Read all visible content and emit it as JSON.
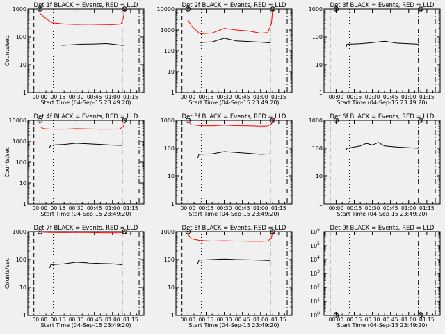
{
  "figure": {
    "background": "#f0f0f0",
    "ink_color": "#000000",
    "lld_color": "#ff0000"
  },
  "chart_data": [
    {
      "type": "line",
      "title": "Det 1f BLACK = Events, RED = LLD",
      "xlabel": "Start Time (04-Sep-15 23:49:20)",
      "ylabel": "Counts/sec",
      "yscale": "log",
      "ylim": [
        1,
        1000
      ],
      "ytick_labels": [
        "1",
        "10",
        "100",
        "1000"
      ],
      "xtick_labels": [
        "00:00",
        "00:15",
        "00:30",
        "00:45",
        "01:00",
        "01:15"
      ],
      "xlim_min": [
        -10,
        86
      ],
      "series": [
        {
          "color": "#000000",
          "points": [
            [
              18,
              50
            ],
            [
              25,
              52
            ],
            [
              35,
              55
            ],
            [
              45,
              56
            ],
            [
              55,
              58
            ],
            [
              60,
              55
            ],
            [
              68,
              50
            ],
            [
              70,
              50
            ]
          ]
        },
        {
          "color": "#ff0000",
          "points": [
            [
              0,
              700
            ],
            [
              5,
              450
            ],
            [
              10,
              320
            ],
            [
              20,
              290
            ],
            [
              30,
              280
            ],
            [
              40,
              285
            ],
            [
              50,
              280
            ],
            [
              60,
              275
            ],
            [
              67,
              290
            ],
            [
              69,
              480
            ],
            [
              70,
              1000
            ]
          ]
        }
      ],
      "vlines": [
        {
          "x": -5,
          "style": "dashed"
        },
        {
          "x": 11,
          "style": "dotted"
        },
        {
          "x": 68,
          "style": "dashdot"
        },
        {
          "x": 82,
          "style": "dashdot"
        }
      ],
      "markers": [
        {
          "x": 0,
          "y": 1000,
          "label": "f"
        },
        {
          "x": 70,
          "y": 1000,
          "label": "S"
        }
      ]
    },
    {
      "type": "line",
      "title": "Det 2f BLACK = Events, RED = LLD",
      "xlabel": "Start Time (04-Sep-15 23:49:20)",
      "ylabel": "",
      "yscale": "log",
      "ylim": [
        1,
        10000
      ],
      "ytick_labels": [
        "1",
        "10",
        "100",
        "1000",
        "10000"
      ],
      "xtick_labels": [
        "00:00",
        "00:15",
        "00:30",
        "00:45",
        "01:00",
        "01:15"
      ],
      "xlim_min": [
        -10,
        86
      ],
      "series": [
        {
          "color": "#000000",
          "points": [
            [
              10,
              250
            ],
            [
              20,
              270
            ],
            [
              30,
              400
            ],
            [
              40,
              300
            ],
            [
              50,
              280
            ],
            [
              60,
              260
            ],
            [
              68,
              240
            ]
          ]
        },
        {
          "color": "#ff0000",
          "points": [
            [
              0,
              3000
            ],
            [
              3,
              1500
            ],
            [
              10,
              650
            ],
            [
              20,
              720
            ],
            [
              30,
              1200
            ],
            [
              40,
              1000
            ],
            [
              50,
              900
            ],
            [
              60,
              700
            ],
            [
              66,
              750
            ],
            [
              69,
              2000
            ],
            [
              70,
              10000
            ]
          ]
        }
      ],
      "vlines": [
        {
          "x": -5,
          "style": "dashed"
        },
        {
          "x": 11,
          "style": "dotted"
        },
        {
          "x": 68,
          "style": "dashdot"
        },
        {
          "x": 82,
          "style": "dashdot"
        }
      ],
      "markers": [
        {
          "x": 0,
          "y": 10000,
          "label": "f"
        },
        {
          "x": 70,
          "y": 10000,
          "label": "S"
        }
      ]
    },
    {
      "type": "line",
      "title": "Det 3f BLACK = Events, RED = LLD",
      "xlabel": "Start Time (04-Sep-15 23:49:20)",
      "ylabel": "",
      "yscale": "log",
      "ylim": [
        1,
        1000
      ],
      "ytick_labels": [
        "1",
        "10",
        "100",
        "1000"
      ],
      "xtick_labels": [
        "00:00",
        "00:15",
        "00:30",
        "00:45",
        "01:00",
        "01:15"
      ],
      "xlim_min": [
        -10,
        86
      ],
      "series": [
        {
          "color": "#000000",
          "points": [
            [
              8,
              40
            ],
            [
              9,
              55
            ],
            [
              20,
              57
            ],
            [
              30,
              62
            ],
            [
              40,
              70
            ],
            [
              50,
              60
            ],
            [
              60,
              57
            ],
            [
              68,
              55
            ]
          ]
        }
      ],
      "vlines": [
        {
          "x": -5,
          "style": "dashed"
        },
        {
          "x": 11,
          "style": "dotted"
        },
        {
          "x": 68,
          "style": "dashdot"
        },
        {
          "x": 82,
          "style": "dashdot"
        }
      ],
      "markers": [
        {
          "x": 0,
          "y": 1000,
          "label": "f"
        },
        {
          "x": 70,
          "y": 1000,
          "label": "S"
        }
      ]
    },
    {
      "type": "line",
      "title": "Det 4f BLACK = Events, RED = LLD",
      "xlabel": "Start Time (04-Sep-15 23:49:20)",
      "ylabel": "Counts/sec",
      "yscale": "log",
      "ylim": [
        1,
        10000
      ],
      "ytick_labels": [
        "1",
        "10",
        "100",
        "1000",
        "10000"
      ],
      "xtick_labels": [
        "00:00",
        "00:15",
        "00:30",
        "00:45",
        "01:00",
        "01:15"
      ],
      "xlim_min": [
        -10,
        86
      ],
      "series": [
        {
          "color": "#000000",
          "points": [
            [
              8,
              500
            ],
            [
              9,
              650
            ],
            [
              20,
              700
            ],
            [
              30,
              800
            ],
            [
              40,
              750
            ],
            [
              50,
              700
            ],
            [
              60,
              650
            ],
            [
              68,
              630
            ]
          ]
        },
        {
          "color": "#ff0000",
          "points": [
            [
              0,
              5000
            ],
            [
              3,
              4000
            ],
            [
              10,
              3800
            ],
            [
              20,
              3800
            ],
            [
              30,
              4000
            ],
            [
              40,
              3900
            ],
            [
              50,
              3800
            ],
            [
              60,
              3800
            ],
            [
              66,
              3900
            ],
            [
              69,
              5000
            ],
            [
              70,
              8000
            ]
          ]
        }
      ],
      "vlines": [
        {
          "x": -5,
          "style": "dashed"
        },
        {
          "x": 11,
          "style": "dotted"
        },
        {
          "x": 68,
          "style": "dashdot"
        },
        {
          "x": 82,
          "style": "dashdot"
        }
      ],
      "markers": [
        {
          "x": 0,
          "y": 10000,
          "label": "f"
        },
        {
          "x": 70,
          "y": 10000,
          "label": "S"
        }
      ]
    },
    {
      "type": "line",
      "title": "Det 5f BLACK = Events, RED = LLD",
      "xlabel": "Start Time (04-Sep-15 23:49:20)",
      "ylabel": "",
      "yscale": "log",
      "ylim": [
        1,
        1000
      ],
      "ytick_labels": [
        "1",
        "10",
        "100",
        "1000"
      ],
      "xtick_labels": [
        "00:00",
        "00:15",
        "00:30",
        "00:45",
        "01:00",
        "01:15"
      ],
      "xlim_min": [
        -10,
        86
      ],
      "series": [
        {
          "color": "#000000",
          "points": [
            [
              8,
              45
            ],
            [
              9,
              60
            ],
            [
              20,
              62
            ],
            [
              30,
              75
            ],
            [
              40,
              70
            ],
            [
              50,
              65
            ],
            [
              60,
              60
            ],
            [
              68,
              62
            ]
          ]
        },
        {
          "color": "#ff0000",
          "points": [
            [
              0,
              900
            ],
            [
              3,
              700
            ],
            [
              10,
              650
            ],
            [
              20,
              640
            ],
            [
              30,
              680
            ],
            [
              40,
              650
            ],
            [
              50,
              640
            ],
            [
              60,
              620
            ],
            [
              66,
              630
            ],
            [
              69,
              750
            ],
            [
              70,
              1000
            ]
          ]
        }
      ],
      "vlines": [
        {
          "x": -5,
          "style": "dashed"
        },
        {
          "x": 11,
          "style": "dotted"
        },
        {
          "x": 68,
          "style": "dashdot"
        },
        {
          "x": 82,
          "style": "dashdot"
        }
      ],
      "markers": [
        {
          "x": 0,
          "y": 1000,
          "label": "f"
        },
        {
          "x": 70,
          "y": 1000,
          "label": "S"
        }
      ]
    },
    {
      "type": "line",
      "title": "Det 6f BLACK = Events, RED = LLD",
      "xlabel": "Start Time (04-Sep-15 23:49:20)",
      "ylabel": "",
      "yscale": "log",
      "ylim": [
        1,
        1000
      ],
      "ytick_labels": [
        "1",
        "10",
        "100",
        "1000"
      ],
      "xtick_labels": [
        "00:00",
        "00:15",
        "00:30",
        "00:45",
        "01:00",
        "01:15"
      ],
      "xlim_min": [
        -10,
        86
      ],
      "series": [
        {
          "color": "#000000",
          "points": [
            [
              8,
              80
            ],
            [
              9,
              100
            ],
            [
              15,
              110
            ],
            [
              20,
              120
            ],
            [
              25,
              150
            ],
            [
              30,
              130
            ],
            [
              35,
              160
            ],
            [
              40,
              120
            ],
            [
              50,
              110
            ],
            [
              60,
              105
            ],
            [
              68,
              100
            ]
          ]
        }
      ],
      "vlines": [
        {
          "x": -5,
          "style": "dashed"
        },
        {
          "x": 11,
          "style": "dotted"
        },
        {
          "x": 68,
          "style": "dashdot"
        },
        {
          "x": 82,
          "style": "dashdot"
        }
      ],
      "markers": [
        {
          "x": 0,
          "y": 1000,
          "label": "f"
        },
        {
          "x": 70,
          "y": 1000,
          "label": "S"
        }
      ]
    },
    {
      "type": "line",
      "title": "Det 7f BLACK = Events, RED = LLD",
      "xlabel": "Start Time (04-Sep-15 23:49:20)",
      "ylabel": "Counts/sec",
      "yscale": "log",
      "ylim": [
        1,
        1000
      ],
      "ytick_labels": [
        "1",
        "10",
        "100",
        "1000"
      ],
      "xtick_labels": [
        "00:00",
        "00:15",
        "00:30",
        "00:45",
        "01:00",
        "01:15"
      ],
      "xlim_min": [
        -10,
        86
      ],
      "series": [
        {
          "color": "#000000",
          "points": [
            [
              8,
              50
            ],
            [
              9,
              65
            ],
            [
              20,
              70
            ],
            [
              30,
              80
            ],
            [
              40,
              75
            ],
            [
              50,
              72
            ],
            [
              60,
              70
            ],
            [
              68,
              65
            ]
          ]
        },
        {
          "color": "#ff0000",
          "points": [
            [
              0,
              1000
            ],
            [
              3,
              950
            ],
            [
              10,
              930
            ],
            [
              20,
              920
            ],
            [
              30,
              940
            ],
            [
              40,
              930
            ],
            [
              50,
              910
            ],
            [
              60,
              900
            ],
            [
              66,
              910
            ],
            [
              69,
              950
            ],
            [
              70,
              1000
            ]
          ]
        }
      ],
      "vlines": [
        {
          "x": -5,
          "style": "dashed"
        },
        {
          "x": 11,
          "style": "dotted"
        },
        {
          "x": 68,
          "style": "dashdot"
        },
        {
          "x": 82,
          "style": "dashdot"
        }
      ],
      "markers": [
        {
          "x": 0,
          "y": 1000,
          "label": "f"
        },
        {
          "x": 70,
          "y": 1000,
          "label": "S"
        }
      ]
    },
    {
      "type": "line",
      "title": "Det 8f BLACK = Events, RED = LLD",
      "xlabel": "Start Time (04-Sep-15 23:49:20)",
      "ylabel": "",
      "yscale": "log",
      "ylim": [
        1,
        1000
      ],
      "ytick_labels": [
        "1",
        "10",
        "100",
        "1000"
      ],
      "xtick_labels": [
        "00:00",
        "00:15",
        "00:30",
        "00:45",
        "01:00",
        "01:15"
      ],
      "xlim_min": [
        -10,
        86
      ],
      "series": [
        {
          "color": "#000000",
          "points": [
            [
              8,
              70
            ],
            [
              9,
              95
            ],
            [
              20,
              100
            ],
            [
              30,
              105
            ],
            [
              40,
              100
            ],
            [
              50,
              98
            ],
            [
              60,
              95
            ],
            [
              68,
              92
            ]
          ]
        },
        {
          "color": "#ff0000",
          "points": [
            [
              0,
              800
            ],
            [
              3,
              550
            ],
            [
              10,
              480
            ],
            [
              20,
              460
            ],
            [
              30,
              470
            ],
            [
              40,
              460
            ],
            [
              50,
              455
            ],
            [
              60,
              450
            ],
            [
              66,
              460
            ],
            [
              69,
              600
            ],
            [
              70,
              1000
            ]
          ]
        }
      ],
      "vlines": [
        {
          "x": -5,
          "style": "dashed"
        },
        {
          "x": 11,
          "style": "dotted"
        },
        {
          "x": 68,
          "style": "dashdot"
        },
        {
          "x": 82,
          "style": "dashdot"
        }
      ],
      "markers": [
        {
          "x": 0,
          "y": 1000,
          "label": "f"
        },
        {
          "x": 70,
          "y": 1000,
          "label": "S"
        }
      ]
    },
    {
      "type": "line",
      "title": "Det 9f BLACK = Events, RED = LLD",
      "xlabel": "Start Time (04-Sep-15 23:49:20)",
      "ylabel": "",
      "yscale": "log",
      "ylim": [
        1,
        1000000
      ],
      "ytick_labels": [
        "10^0",
        "10^1",
        "10^2",
        "10^3",
        "10^4",
        "10^5",
        "10^6"
      ],
      "xtick_labels": [
        "00:00",
        "00:15",
        "00:30",
        "00:45",
        "01:00",
        "01:15"
      ],
      "xlim_min": [
        -10,
        86
      ],
      "series": [],
      "vlines": [
        {
          "x": -5,
          "style": "dashed"
        },
        {
          "x": 11,
          "style": "dotted"
        },
        {
          "x": 68,
          "style": "dashdot"
        },
        {
          "x": 82,
          "style": "dashdot"
        }
      ],
      "markers": [
        {
          "x": 0,
          "y": 1,
          "label": "f"
        },
        {
          "x": 70,
          "y": 1,
          "label": "S"
        }
      ]
    }
  ]
}
